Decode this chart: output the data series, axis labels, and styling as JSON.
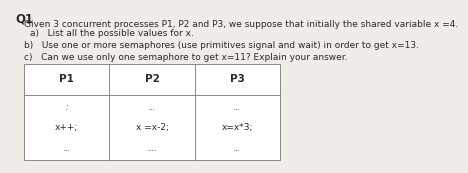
{
  "title": "Q1",
  "intro": "Given 3 concurrent processes P1, P2 and P3, we suppose that initially the shared variable x =4.",
  "qa": "a)   List all the possible values for x.",
  "qb": "b)   Use one or more semaphores (use primitives signal and wait) in order to get x=13.",
  "qc": "c)   Can we use only one semaphore to get x=11? Explain your answer.",
  "headers": [
    "P1",
    "P2",
    "P3"
  ],
  "row1": [
    ":",
    "...",
    "..."
  ],
  "row2": [
    "x++;",
    "x =x-2;",
    "x=x*3;"
  ],
  "row3": [
    "...",
    "....",
    "..."
  ],
  "bg_color": "#f0ede8",
  "text_color": "#2a2a2a",
  "table_border": "#888888",
  "table_bg": "#ffffff",
  "font_size_title": 8.5,
  "font_size_intro": 6.5,
  "font_size_q": 6.5,
  "font_size_header": 7.5,
  "font_size_cell": 6.5
}
